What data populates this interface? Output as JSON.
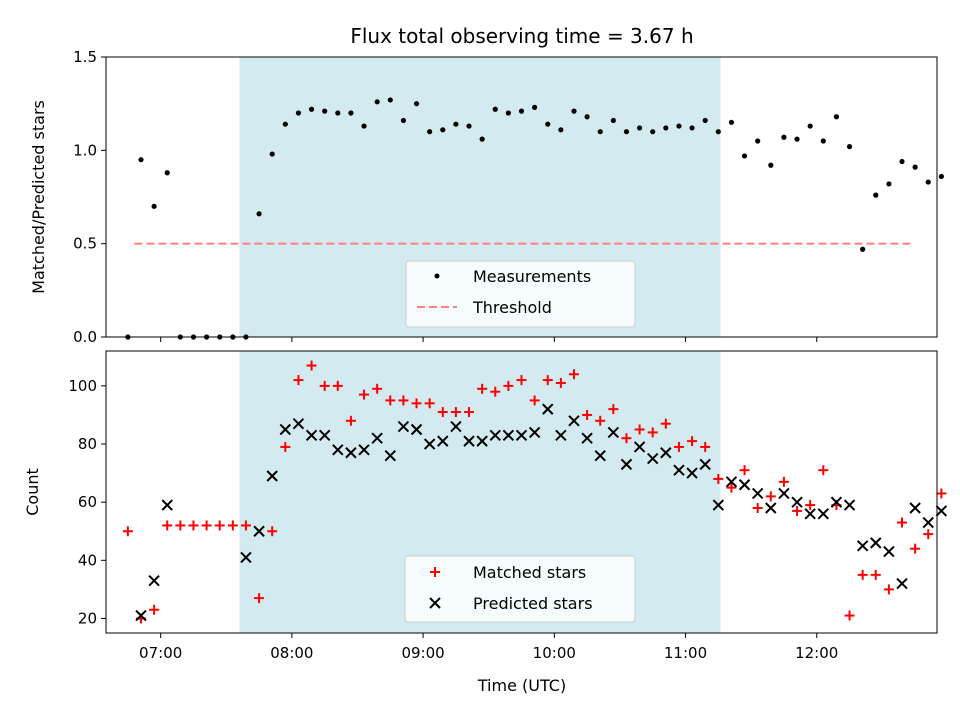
{
  "colors": {
    "observing_band": "#d3ebf0",
    "measurement": "#000000",
    "threshold": "#ff7f7f",
    "matched": "#ff0000",
    "predicted": "#000000"
  },
  "chart_data": [
    {
      "type": "scatter",
      "title": "Flux total observing time = 3.67 h",
      "ylabel": "Matched/Predicted stars",
      "xlim": [
        "06:35",
        "12:55"
      ],
      "ylim": [
        0,
        1.5
      ],
      "yticks": [
        "0.0",
        "0.5",
        "1.0",
        "1.5"
      ],
      "observing_window": [
        "07:36",
        "11:16"
      ],
      "legend_position": "lower-center",
      "threshold": {
        "name": "Threshold",
        "y": 0.5,
        "x_range": [
          "06:48",
          "12:43"
        ]
      },
      "series": [
        {
          "name": "Measurements",
          "points": [
            [
              "06:45",
              0.0
            ],
            [
              "06:51",
              0.95
            ],
            [
              "06:57",
              0.7
            ],
            [
              "07:03",
              0.88
            ],
            [
              "07:09",
              0.0
            ],
            [
              "07:15",
              0.0
            ],
            [
              "07:21",
              0.0
            ],
            [
              "07:27",
              0.0
            ],
            [
              "07:33",
              0.0
            ],
            [
              "07:39",
              0.0
            ],
            [
              "07:45",
              0.66
            ],
            [
              "07:51",
              0.98
            ],
            [
              "07:57",
              1.14
            ],
            [
              "08:03",
              1.2
            ],
            [
              "08:09",
              1.22
            ],
            [
              "08:15",
              1.21
            ],
            [
              "08:21",
              1.2
            ],
            [
              "08:27",
              1.2
            ],
            [
              "08:33",
              1.13
            ],
            [
              "08:39",
              1.26
            ],
            [
              "08:45",
              1.27
            ],
            [
              "08:51",
              1.16
            ],
            [
              "08:57",
              1.25
            ],
            [
              "09:03",
              1.1
            ],
            [
              "09:09",
              1.11
            ],
            [
              "09:15",
              1.14
            ],
            [
              "09:21",
              1.13
            ],
            [
              "09:27",
              1.06
            ],
            [
              "09:33",
              1.22
            ],
            [
              "09:39",
              1.2
            ],
            [
              "09:45",
              1.21
            ],
            [
              "09:51",
              1.23
            ],
            [
              "09:57",
              1.14
            ],
            [
              "10:03",
              1.11
            ],
            [
              "10:09",
              1.21
            ],
            [
              "10:15",
              1.18
            ],
            [
              "10:21",
              1.1
            ],
            [
              "10:27",
              1.16
            ],
            [
              "10:33",
              1.1
            ],
            [
              "10:39",
              1.12
            ],
            [
              "10:45",
              1.1
            ],
            [
              "10:51",
              1.12
            ],
            [
              "10:57",
              1.13
            ],
            [
              "11:03",
              1.12
            ],
            [
              "11:09",
              1.16
            ],
            [
              "11:15",
              1.1
            ],
            [
              "11:21",
              1.15
            ],
            [
              "11:27",
              0.97
            ],
            [
              "11:33",
              1.05
            ],
            [
              "11:39",
              0.92
            ],
            [
              "11:45",
              1.07
            ],
            [
              "11:51",
              1.06
            ],
            [
              "11:57",
              1.13
            ],
            [
              "12:03",
              1.05
            ],
            [
              "12:09",
              1.18
            ],
            [
              "12:15",
              1.02
            ],
            [
              "12:21",
              0.47
            ],
            [
              "12:27",
              0.76
            ],
            [
              "12:33",
              0.82
            ],
            [
              "12:39",
              0.94
            ],
            [
              "12:45",
              0.91
            ],
            [
              "12:51",
              0.83
            ],
            [
              "12:57",
              0.86
            ]
          ]
        }
      ]
    },
    {
      "type": "scatter",
      "xlabel": "Time (UTC)",
      "ylabel": "Count",
      "xlim": [
        "06:35",
        "12:55"
      ],
      "ylim": [
        15,
        112
      ],
      "yticks": [
        "20",
        "40",
        "60",
        "80",
        "100"
      ],
      "xticks": [
        "07:00",
        "08:00",
        "09:00",
        "10:00",
        "11:00",
        "12:00"
      ],
      "observing_window": [
        "07:36",
        "11:16"
      ],
      "legend_position": "lower-center",
      "series": [
        {
          "name": "Matched stars",
          "marker": "plus",
          "points": [
            [
              "06:45",
              50
            ],
            [
              "06:51",
              20
            ],
            [
              "06:57",
              23
            ],
            [
              "07:03",
              52
            ],
            [
              "07:09",
              52
            ],
            [
              "07:15",
              52
            ],
            [
              "07:21",
              52
            ],
            [
              "07:27",
              52
            ],
            [
              "07:33",
              52
            ],
            [
              "07:39",
              52
            ],
            [
              "07:45",
              27
            ],
            [
              "07:51",
              50
            ],
            [
              "07:57",
              79
            ],
            [
              "08:03",
              102
            ],
            [
              "08:09",
              107
            ],
            [
              "08:15",
              100
            ],
            [
              "08:21",
              100
            ],
            [
              "08:27",
              88
            ],
            [
              "08:33",
              97
            ],
            [
              "08:39",
              99
            ],
            [
              "08:45",
              95
            ],
            [
              "08:51",
              95
            ],
            [
              "08:57",
              94
            ],
            [
              "09:03",
              94
            ],
            [
              "09:09",
              91
            ],
            [
              "09:15",
              91
            ],
            [
              "09:21",
              91
            ],
            [
              "09:27",
              99
            ],
            [
              "09:33",
              98
            ],
            [
              "09:39",
              100
            ],
            [
              "09:45",
              102
            ],
            [
              "09:51",
              95
            ],
            [
              "09:57",
              102
            ],
            [
              "10:03",
              101
            ],
            [
              "10:09",
              104
            ],
            [
              "10:15",
              90
            ],
            [
              "10:21",
              88
            ],
            [
              "10:27",
              92
            ],
            [
              "10:33",
              82
            ],
            [
              "10:39",
              85
            ],
            [
              "10:45",
              84
            ],
            [
              "10:51",
              87
            ],
            [
              "10:57",
              79
            ],
            [
              "11:03",
              81
            ],
            [
              "11:09",
              79
            ],
            [
              "11:15",
              68
            ],
            [
              "11:21",
              65
            ],
            [
              "11:27",
              71
            ],
            [
              "11:33",
              58
            ],
            [
              "11:39",
              62
            ],
            [
              "11:45",
              67
            ],
            [
              "11:51",
              57
            ],
            [
              "11:57",
              59
            ],
            [
              "12:03",
              71
            ],
            [
              "12:09",
              59
            ],
            [
              "12:15",
              21
            ],
            [
              "12:21",
              35
            ],
            [
              "12:27",
              35
            ],
            [
              "12:33",
              30
            ],
            [
              "12:39",
              53
            ],
            [
              "12:45",
              44
            ],
            [
              "12:51",
              49
            ],
            [
              "12:57",
              63
            ]
          ]
        },
        {
          "name": "Predicted stars",
          "marker": "x",
          "points": [
            [
              "06:51",
              21
            ],
            [
              "06:57",
              33
            ],
            [
              "07:03",
              59
            ],
            [
              "07:39",
              41
            ],
            [
              "07:45",
              50
            ],
            [
              "07:51",
              69
            ],
            [
              "07:57",
              85
            ],
            [
              "08:03",
              87
            ],
            [
              "08:09",
              83
            ],
            [
              "08:15",
              83
            ],
            [
              "08:21",
              78
            ],
            [
              "08:27",
              77
            ],
            [
              "08:33",
              78
            ],
            [
              "08:39",
              82
            ],
            [
              "08:45",
              76
            ],
            [
              "08:51",
              86
            ],
            [
              "08:57",
              85
            ],
            [
              "09:03",
              80
            ],
            [
              "09:09",
              81
            ],
            [
              "09:15",
              86
            ],
            [
              "09:21",
              81
            ],
            [
              "09:27",
              81
            ],
            [
              "09:33",
              83
            ],
            [
              "09:39",
              83
            ],
            [
              "09:45",
              83
            ],
            [
              "09:51",
              84
            ],
            [
              "09:57",
              92
            ],
            [
              "10:03",
              83
            ],
            [
              "10:09",
              88
            ],
            [
              "10:15",
              82
            ],
            [
              "10:21",
              76
            ],
            [
              "10:27",
              84
            ],
            [
              "10:33",
              73
            ],
            [
              "10:39",
              79
            ],
            [
              "10:45",
              75
            ],
            [
              "10:51",
              77
            ],
            [
              "10:57",
              71
            ],
            [
              "11:03",
              70
            ],
            [
              "11:09",
              73
            ],
            [
              "11:15",
              59
            ],
            [
              "11:21",
              67
            ],
            [
              "11:27",
              66
            ],
            [
              "11:33",
              63
            ],
            [
              "11:39",
              58
            ],
            [
              "11:45",
              63
            ],
            [
              "11:51",
              60
            ],
            [
              "11:57",
              56
            ],
            [
              "12:03",
              56
            ],
            [
              "12:09",
              60
            ],
            [
              "12:15",
              59
            ],
            [
              "12:21",
              45
            ],
            [
              "12:27",
              46
            ],
            [
              "12:33",
              43
            ],
            [
              "12:39",
              32
            ],
            [
              "12:45",
              58
            ],
            [
              "12:51",
              53
            ],
            [
              "12:57",
              57
            ]
          ]
        }
      ]
    }
  ]
}
